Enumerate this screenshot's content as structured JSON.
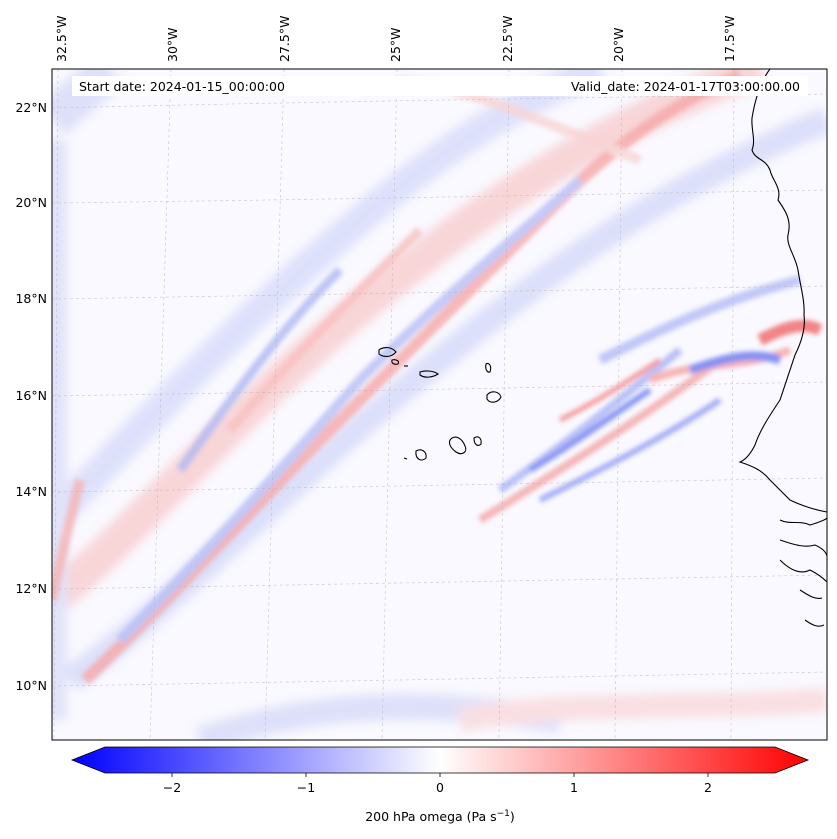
{
  "map": {
    "lon_ticks": [
      "32.5°W",
      "30°W",
      "27.5°W",
      "25°W",
      "22.5°W",
      "20°W",
      "17.5°W"
    ],
    "lat_ticks": [
      "22°N",
      "20°N",
      "18°N",
      "16°N",
      "14°N",
      "12°N",
      "10°N"
    ],
    "start_date": "Start date: 2024-01-15_00:00:00",
    "valid_date": "Valid_date: 2024-01-17T03:00:00.00",
    "colors": {
      "positive": "#ff0000",
      "negative": "#0000ff",
      "neutral": "#ffffff",
      "coastline": "#000000",
      "gridline": "#b0b0b0"
    },
    "field_description": "200 hPa vertical velocity field with SW-NE oriented bands"
  },
  "colorbar": {
    "label_text": "200 hPa omega (Pa s",
    "label_sup": "−1",
    "label_close": ")",
    "ticks": [
      "−2",
      "−1",
      "0",
      "1",
      "2"
    ],
    "tick_values": [
      -2,
      -1,
      0,
      1,
      2
    ],
    "vmin": -2.5,
    "vmax": 2.5,
    "extend": "both"
  }
}
